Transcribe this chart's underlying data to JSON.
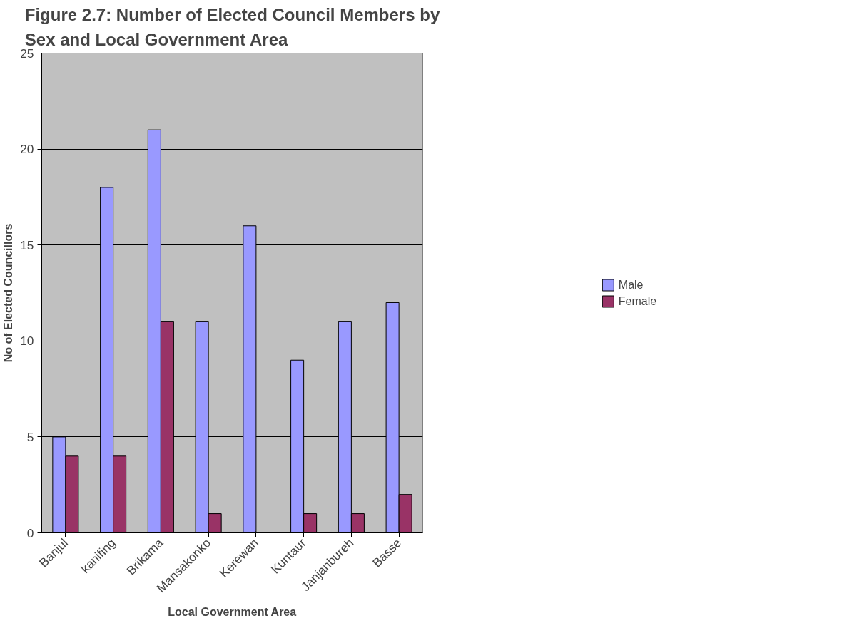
{
  "chart_data": {
    "type": "bar",
    "title": "Figure 2.7: Number of Elected Council Members by Sex and Local Government Area",
    "xlabel": "Local Government Area",
    "ylabel": "No of Elected Councillors",
    "categories": [
      "Banjul",
      "kanifing",
      "Brikama",
      "Mansakonko",
      "Kerewan",
      "Kuntaur",
      "Janjanbureh",
      "Basse"
    ],
    "series": [
      {
        "name": "Male",
        "color": "#9999ff",
        "values": [
          5,
          18,
          21,
          11,
          16,
          9,
          11,
          12
        ]
      },
      {
        "name": "Female",
        "color": "#993366",
        "values": [
          4,
          4,
          11,
          1,
          0,
          1,
          1,
          2
        ]
      }
    ],
    "ylim": [
      0,
      25
    ],
    "yticks": [
      0,
      5,
      10,
      15,
      20,
      25
    ],
    "grid": "y",
    "legend": "right"
  }
}
